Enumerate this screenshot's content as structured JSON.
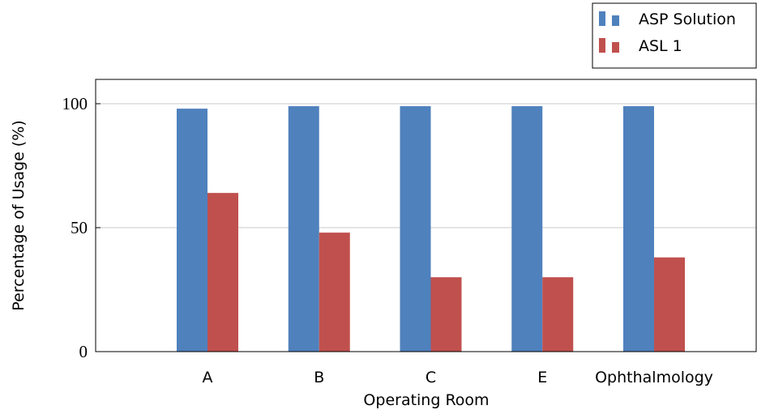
{
  "chart_data": {
    "type": "bar",
    "title": "",
    "xlabel": "Operating Room",
    "ylabel": "Percentage of Usage (%)",
    "categories": [
      "A",
      "B",
      "C",
      "E",
      "Ophthalmology"
    ],
    "series": [
      {
        "name": "ASP Solution",
        "color": "#4f81bd",
        "values": [
          98,
          99,
          99,
          99,
          99
        ]
      },
      {
        "name": "ASL 1",
        "color": "#c0504d",
        "values": [
          64,
          48,
          30,
          30,
          38
        ]
      }
    ],
    "ylim": [
      0,
      100
    ],
    "yticks": [
      0,
      50,
      100
    ],
    "grid": "horizontal",
    "legend_position": "top-right, outside plot"
  }
}
